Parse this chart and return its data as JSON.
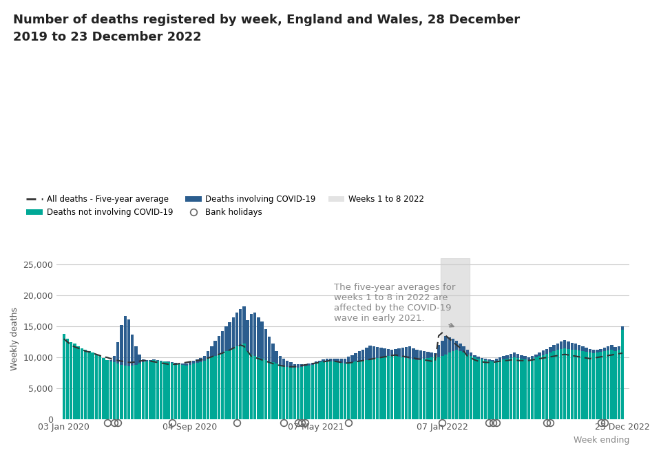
{
  "title": "Number of deaths registered by week, England and Wales, 28 December\n2019 to 23 December 2022",
  "ylabel": "Weekly deaths",
  "xlabel": "Week ending",
  "color_non_covid": "#00A896",
  "color_covid": "#2B5D8E",
  "color_avg": "#333333",
  "color_shading": "#D8D8D8",
  "background_color": "#FFFFFF",
  "ylim": [
    0,
    26000
  ],
  "yticks": [
    0,
    5000,
    10000,
    15000,
    20000,
    25000
  ],
  "annotation_text": "The five-year averages for\nweeks 1 to 8 in 2022 are\naffected by the COVID-19\nwave in early 2021.",
  "weeks_1to8_start": 105,
  "weeks_1to8_end": 113,
  "xtick_labels": [
    "03 Jan 2020",
    "04 Sep 2020",
    "07 May 2021",
    "07 Jan 2022",
    "23 Dec 2022"
  ],
  "xtick_positions": [
    0,
    35,
    70,
    105,
    155
  ],
  "bank_holidays": [
    12,
    14,
    15,
    30,
    48,
    61,
    65,
    66,
    67,
    79,
    105,
    118,
    119,
    120,
    134,
    135,
    149,
    150
  ],
  "n_weeks": 156
}
